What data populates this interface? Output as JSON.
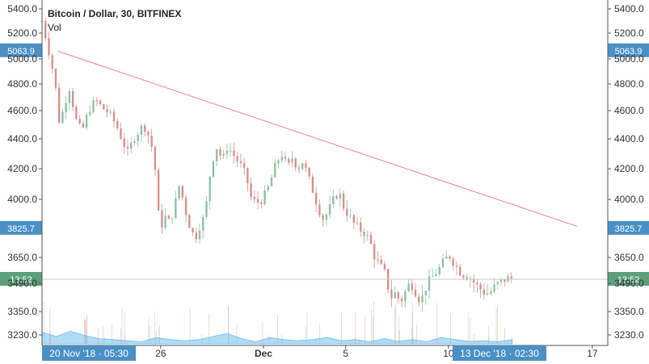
{
  "header": {
    "title": "Bitcoin / Dollar, 30, BITFINEX",
    "volume_label": "Vol"
  },
  "colors": {
    "bull": "#8cc1a1",
    "bear": "#d68f8b",
    "trendline": "#f08080",
    "volume": "#6fc0ec",
    "axis_line": "#555555",
    "price_badge": "#4a90c6",
    "time_badge": "#4a90c6",
    "crosshair_badge": "#5c9f79",
    "crosshair_line": "#c8c8c8"
  },
  "chart_data": {
    "type": "candlestick",
    "ylim": [
      3200,
      5420
    ],
    "y_ticks": [
      {
        "value": 5400,
        "label": "5400.0"
      },
      {
        "value": 5200,
        "label": "5200.0"
      },
      {
        "value": 5000,
        "label": "5000.0"
      },
      {
        "value": 4800,
        "label": "4800.0"
      },
      {
        "value": 4600,
        "label": "4600.0"
      },
      {
        "value": 4400,
        "label": "4400.0"
      },
      {
        "value": 4200,
        "label": "4200.0"
      },
      {
        "value": 4000,
        "label": "4000.0"
      },
      {
        "value": 3650,
        "label": "3650.0"
      },
      {
        "value": 3490,
        "label": "3490.0"
      },
      {
        "value": 3350,
        "label": "3350.0"
      },
      {
        "value": 3230,
        "label": "3230.0"
      }
    ],
    "x_range": [
      "2018-11-20T05:30",
      "2018-12-17T18:00"
    ],
    "x_ticks": [
      {
        "date": "2018-11-26T00:00",
        "label": "26",
        "bold": false
      },
      {
        "date": "2018-12-01T00:00",
        "label": "Dec",
        "bold": true
      },
      {
        "date": "2018-12-05T00:00",
        "label": "5",
        "bold": false
      },
      {
        "date": "2018-12-10T00:00",
        "label": "10",
        "bold": false
      },
      {
        "date": "2018-12-17T00:00",
        "label": "17",
        "bold": false
      }
    ],
    "price_path": [
      [
        "2018-11-20T05:30",
        5300
      ],
      [
        "2018-11-20T12:00",
        5100
      ],
      [
        "2018-11-20T20:00",
        4850
      ],
      [
        "2018-11-21T02:00",
        4500
      ],
      [
        "2018-11-21T08:00",
        4650
      ],
      [
        "2018-11-21T14:00",
        4780
      ],
      [
        "2018-11-21T20:00",
        4550
      ],
      [
        "2018-11-22T04:00",
        4450
      ],
      [
        "2018-11-22T12:00",
        4600
      ],
      [
        "2018-11-22T20:00",
        4680
      ],
      [
        "2018-11-23T04:00",
        4620
      ],
      [
        "2018-11-23T12:00",
        4580
      ],
      [
        "2018-11-23T20:00",
        4500
      ],
      [
        "2018-11-24T04:00",
        4380
      ],
      [
        "2018-11-24T10:00",
        4300
      ],
      [
        "2018-11-24T16:00",
        4400
      ],
      [
        "2018-11-24T22:00",
        4450
      ],
      [
        "2018-11-25T04:00",
        4500
      ],
      [
        "2018-11-25T10:00",
        4420
      ],
      [
        "2018-11-25T16:00",
        4300
      ],
      [
        "2018-11-25T20:00",
        4020
      ],
      [
        "2018-11-25T23:00",
        3800
      ],
      [
        "2018-11-26T04:00",
        3900
      ],
      [
        "2018-11-26T10:00",
        3860
      ],
      [
        "2018-11-26T16:00",
        3950
      ],
      [
        "2018-11-26T22:00",
        4100
      ],
      [
        "2018-11-27T04:00",
        3950
      ],
      [
        "2018-11-27T10:00",
        3840
      ],
      [
        "2018-11-27T16:00",
        3760
      ],
      [
        "2018-11-27T22:00",
        3850
      ],
      [
        "2018-11-28T04:00",
        3900
      ],
      [
        "2018-11-28T08:00",
        4100
      ],
      [
        "2018-11-28T12:00",
        4250
      ],
      [
        "2018-11-28T18:00",
        4350
      ],
      [
        "2018-11-29T00:00",
        4250
      ],
      [
        "2018-11-29T06:00",
        4350
      ],
      [
        "2018-11-29T12:00",
        4300
      ],
      [
        "2018-11-29T18:00",
        4250
      ],
      [
        "2018-11-30T00:00",
        4200
      ],
      [
        "2018-11-30T06:00",
        4100
      ],
      [
        "2018-11-30T10:00",
        4000
      ],
      [
        "2018-11-30T16:00",
        3980
      ],
      [
        "2018-11-30T22:00",
        4000
      ],
      [
        "2018-12-01T04:00",
        4050
      ],
      [
        "2018-12-01T10:00",
        4150
      ],
      [
        "2018-12-01T16:00",
        4250
      ],
      [
        "2018-12-01T22:00",
        4300
      ],
      [
        "2018-12-02T04:00",
        4200
      ],
      [
        "2018-12-02T10:00",
        4280
      ],
      [
        "2018-12-02T16:00",
        4200
      ],
      [
        "2018-12-02T22:00",
        4250
      ],
      [
        "2018-12-03T04:00",
        4150
      ],
      [
        "2018-12-03T10:00",
        4050
      ],
      [
        "2018-12-03T16:00",
        3950
      ],
      [
        "2018-12-03T22:00",
        3880
      ],
      [
        "2018-12-04T04:00",
        3930
      ],
      [
        "2018-12-04T10:00",
        4000
      ],
      [
        "2018-12-04T16:00",
        4050
      ],
      [
        "2018-12-04T22:00",
        3950
      ],
      [
        "2018-12-05T04:00",
        3900
      ],
      [
        "2018-12-05T10:00",
        3850
      ],
      [
        "2018-12-05T16:00",
        3820
      ],
      [
        "2018-12-05T22:00",
        3800
      ],
      [
        "2018-12-06T04:00",
        3750
      ],
      [
        "2018-12-06T10:00",
        3650
      ],
      [
        "2018-12-06T16:00",
        3600
      ],
      [
        "2018-12-06T22:00",
        3550
      ],
      [
        "2018-12-07T04:00",
        3420
      ],
      [
        "2018-12-07T10:00",
        3440
      ],
      [
        "2018-12-07T16:00",
        3400
      ],
      [
        "2018-12-07T22:00",
        3450
      ],
      [
        "2018-12-08T04:00",
        3500
      ],
      [
        "2018-12-08T10:00",
        3450
      ],
      [
        "2018-12-08T16:00",
        3400
      ],
      [
        "2018-12-08T22:00",
        3480
      ],
      [
        "2018-12-09T04:00",
        3520
      ],
      [
        "2018-12-09T10:00",
        3560
      ],
      [
        "2018-12-09T16:00",
        3600
      ],
      [
        "2018-12-09T20:00",
        3640
      ],
      [
        "2018-12-10T02:00",
        3660
      ],
      [
        "2018-12-10T08:00",
        3600
      ],
      [
        "2018-12-10T14:00",
        3560
      ],
      [
        "2018-12-10T20:00",
        3540
      ],
      [
        "2018-12-11T02:00",
        3520
      ],
      [
        "2018-12-11T08:00",
        3480
      ],
      [
        "2018-12-11T14:00",
        3460
      ],
      [
        "2018-12-11T20:00",
        3440
      ],
      [
        "2018-12-12T02:00",
        3450
      ],
      [
        "2018-12-12T08:00",
        3480
      ],
      [
        "2018-12-12T14:00",
        3500
      ],
      [
        "2018-12-12T20:00",
        3520
      ],
      [
        "2018-12-13T02:30",
        3520
      ]
    ],
    "volume_levels": [
      0.55,
      0.35,
      0.6,
      0.4,
      0.25,
      0.2,
      0.15,
      0.1,
      0.3,
      0.2,
      0.15,
      0.2,
      0.35,
      0.5,
      0.25,
      0.1,
      0.3,
      0.2,
      0.15,
      0.2,
      0.3,
      0.15,
      0.2,
      0.1,
      0.25,
      0.12,
      0.2,
      0.1,
      0.3,
      0.2,
      0.12,
      0.15,
      0.1,
      0.2
    ],
    "trendline": {
      "start": [
        "2018-11-21T00:00",
        5060
      ],
      "end": [
        "2018-12-16T06:00",
        3838
      ]
    },
    "horizontal_levels": [
      {
        "value": 5063.9,
        "label": "5063.9"
      },
      {
        "value": 3825.7,
        "label": "3825.7"
      }
    ],
    "crosshair": {
      "value": 3515,
      "label": "13:52"
    },
    "time_badges": {
      "left": "20 Nov '18 · 05:30",
      "right": "13 Dec '18 · 02:30"
    }
  }
}
